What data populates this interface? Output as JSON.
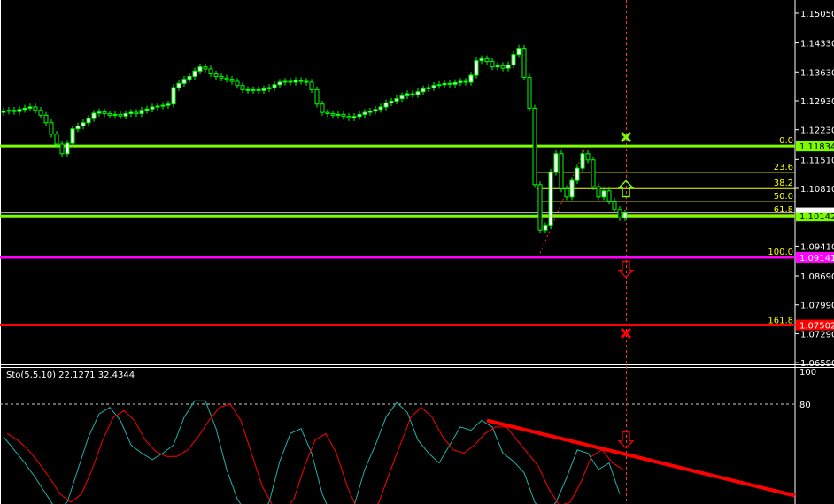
{
  "chart_data": [
    {
      "type": "candlestick",
      "ylim": [
        1.0655,
        1.1537
      ],
      "y_ticks": [
        "1.15050",
        "1.14330",
        "1.13630",
        "1.12930",
        "1.12230",
        "1.11510",
        "1.10810",
        "1.09410",
        "1.08690",
        "1.07990",
        "1.07290",
        "1.06590"
      ],
      "closes": [
        1.1268,
        1.127,
        1.1267,
        1.1272,
        1.1275,
        1.1278,
        1.127,
        1.1258,
        1.124,
        1.1212,
        1.1188,
        1.1165,
        1.119,
        1.1225,
        1.1232,
        1.124,
        1.125,
        1.1263,
        1.1266,
        1.1262,
        1.1258,
        1.126,
        1.1256,
        1.1262,
        1.1265,
        1.1262,
        1.127,
        1.1273,
        1.1278,
        1.128,
        1.1282,
        1.1285,
        1.1325,
        1.1335,
        1.1345,
        1.1352,
        1.1365,
        1.1375,
        1.137,
        1.1358,
        1.1352,
        1.1348,
        1.1345,
        1.134,
        1.133,
        1.132,
        1.1318,
        1.132,
        1.1318,
        1.1322,
        1.1325,
        1.1332,
        1.1338,
        1.134,
        1.1338,
        1.1342,
        1.134,
        1.1338,
        1.132,
        1.1285,
        1.1265,
        1.1262,
        1.1258,
        1.126,
        1.1255,
        1.1252,
        1.1255,
        1.126,
        1.1265,
        1.1268,
        1.1272,
        1.1278,
        1.1288,
        1.1292,
        1.1298,
        1.1305,
        1.131,
        1.1308,
        1.1315,
        1.1322,
        1.1325,
        1.133,
        1.1332,
        1.1335,
        1.1333,
        1.1337,
        1.134,
        1.1338,
        1.1355,
        1.139,
        1.1395,
        1.1388,
        1.1375,
        1.1378,
        1.1372,
        1.138,
        1.1405,
        1.142,
        1.135,
        1.1275,
        1.109,
        1.098,
        1.099,
        1.112,
        1.1165,
        1.108,
        1.106,
        1.11,
        1.113,
        1.1165,
        1.115,
        1.1085,
        1.106,
        1.1075,
        1.105,
        1.103,
        1.101,
        1.1022
      ],
      "horizontal_lines": [
        {
          "price": 1.11834,
          "label": "1.11834",
          "color": "#7CFC00"
        },
        {
          "price": 1.10142,
          "label": "1.10142",
          "color": "#7CFC00"
        },
        {
          "price": 1.09141,
          "label": "1.09141",
          "color": "#FF00FF"
        },
        {
          "price": 1.07502,
          "label": "1.07502",
          "color": "#FF0000"
        },
        {
          "price": 1.1022,
          "label": "",
          "color": "#C0C0C0"
        }
      ],
      "fibonacci": {
        "high": 1.11834,
        "low": 1.09141,
        "color": "#FFFF00",
        "levels": [
          {
            "ratio": 0.0,
            "label": "0.0"
          },
          {
            "ratio": 23.6,
            "label": "23.6"
          },
          {
            "ratio": 38.2,
            "label": "38.2"
          },
          {
            "ratio": 50.0,
            "label": "50.0"
          },
          {
            "ratio": 61.8,
            "label": "61.8"
          },
          {
            "ratio": 100.0,
            "label": "100.0"
          },
          {
            "ratio": 161.8,
            "label": "161.8"
          }
        ]
      },
      "markers": [
        {
          "type": "cross",
          "price": 1.1205,
          "color": "#7CFC00"
        },
        {
          "type": "arrow-up",
          "price": 1.108,
          "color": "#7CFC00"
        },
        {
          "type": "arrow-down",
          "price": 1.0885,
          "color": "#FF0000"
        },
        {
          "type": "cross",
          "price": 1.073,
          "color": "#FF0000"
        }
      ]
    },
    {
      "type": "line",
      "title": "Sto(5,5,10) 22.1271 32.4344",
      "ylim": [
        0,
        100
      ],
      "y_ticks": [
        "100",
        "80"
      ],
      "level": 80,
      "series": [
        {
          "color": "#20B2AA",
          "values": [
            60,
            52,
            44,
            35,
            25,
            15,
            20,
            40,
            60,
            74,
            78,
            70,
            55,
            50,
            46,
            50,
            55,
            72,
            82,
            82,
            65,
            40,
            22,
            12,
            10,
            20,
            45,
            62,
            65,
            50,
            25,
            10,
            8,
            18,
            40,
            55,
            72,
            81,
            75,
            58,
            50,
            44,
            55,
            66,
            64,
            70,
            66,
            50,
            45,
            38,
            20,
            12,
            20,
            35,
            52,
            50,
            40,
            44,
            25
          ]
        },
        {
          "color": "#FF0000",
          "values": [
            62,
            58,
            52,
            44,
            35,
            25,
            20,
            25,
            40,
            58,
            72,
            76,
            70,
            58,
            51,
            48,
            48,
            52,
            60,
            70,
            78,
            80,
            70,
            50,
            30,
            18,
            14,
            22,
            42,
            58,
            62,
            50,
            30,
            15,
            12,
            20,
            38,
            55,
            72,
            78,
            72,
            60,
            52,
            50,
            55,
            62,
            66,
            66,
            58,
            50,
            42,
            28,
            18,
            20,
            32,
            48,
            52,
            44,
            40
          ]
        }
      ],
      "trendline": {
        "from": 70,
        "to": 24,
        "color": "#FF0000"
      },
      "markers": [
        {
          "type": "arrow-down",
          "value": 58,
          "color": "#FF0000"
        }
      ]
    }
  ]
}
